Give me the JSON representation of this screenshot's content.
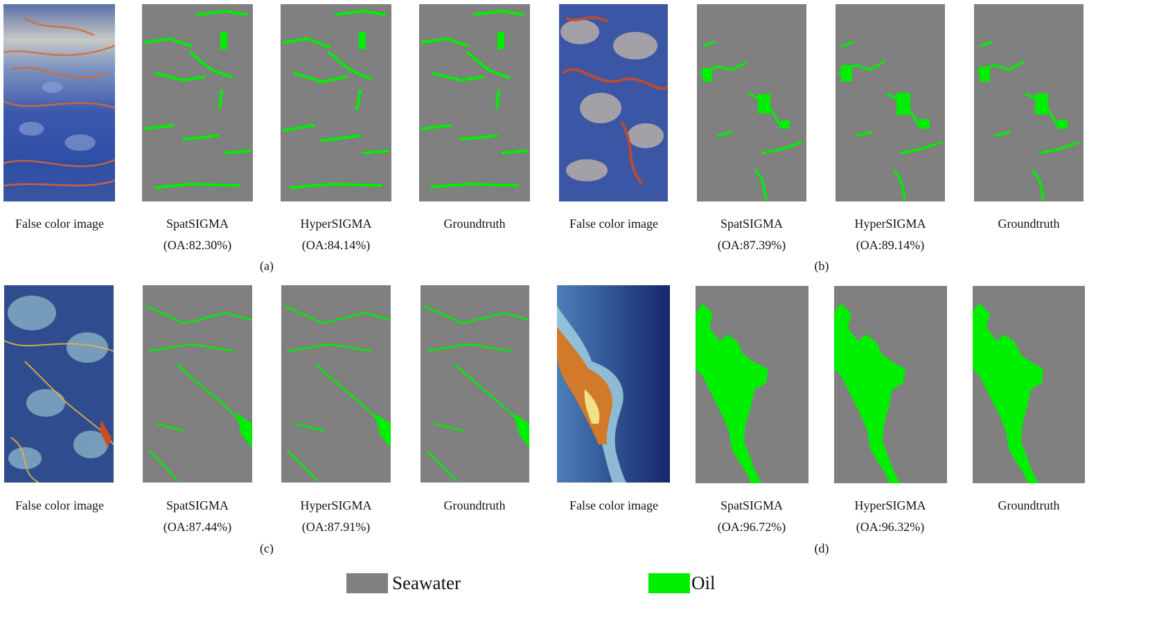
{
  "colors": {
    "seawater": "#808080",
    "oil": "#00ee00"
  },
  "figure": {
    "groups": [
      {
        "label": "(a)",
        "panels": [
          {
            "title": "False color image",
            "oa": ""
          },
          {
            "title": "SpatSIGMA",
            "oa": "(OA:82.30%)"
          },
          {
            "title": "HyperSIGMA",
            "oa": "(OA:84.14%)"
          },
          {
            "title": "Groundtruth",
            "oa": ""
          }
        ]
      },
      {
        "label": "(b)",
        "panels": [
          {
            "title": "False color image",
            "oa": ""
          },
          {
            "title": "SpatSIGMA",
            "oa": "(OA:87.39%)"
          },
          {
            "title": "HyperSIGMA",
            "oa": "(OA:89.14%)"
          },
          {
            "title": "Groundtruth",
            "oa": ""
          }
        ]
      },
      {
        "label": "(c)",
        "panels": [
          {
            "title": "False color image",
            "oa": ""
          },
          {
            "title": "SpatSIGMA",
            "oa": "(OA:87.44%)"
          },
          {
            "title": "HyperSIGMA",
            "oa": "(OA:87.91%)"
          },
          {
            "title": "Groundtruth",
            "oa": ""
          }
        ]
      },
      {
        "label": "(d)",
        "panels": [
          {
            "title": "False color image",
            "oa": ""
          },
          {
            "title": "SpatSIGMA",
            "oa": "(OA:96.72%)"
          },
          {
            "title": "HyperSIGMA",
            "oa": "(OA:96.32%)"
          },
          {
            "title": "Groundtruth",
            "oa": ""
          }
        ]
      }
    ]
  },
  "legend": {
    "items": [
      {
        "label": "Seawater",
        "color": "#808080"
      },
      {
        "label": "Oil",
        "color": "#00ee00"
      }
    ]
  }
}
